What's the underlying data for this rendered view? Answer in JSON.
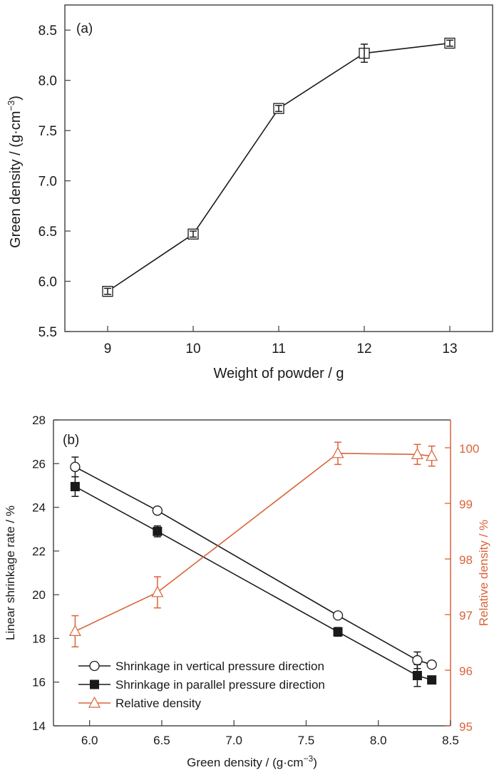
{
  "chart_data": [
    {
      "type": "line",
      "panel_label": "(a)",
      "xlabel": "Weight of powder / g",
      "ylabel_main": "Green density / (g·cm",
      "ylabel_sup": "−3",
      "ylabel_close": ")",
      "xlim": [
        8.5,
        13.5
      ],
      "ylim": [
        5.5,
        8.75
      ],
      "xticks": [
        "9",
        "10",
        "11",
        "12",
        "13"
      ],
      "xtick_values": [
        9,
        10,
        11,
        12,
        13
      ],
      "yticks": [
        "5.5",
        "6.0",
        "6.5",
        "7.0",
        "7.5",
        "8.0",
        "8.5"
      ],
      "ytick_values": [
        5.5,
        6.0,
        6.5,
        7.0,
        7.5,
        8.0,
        8.5
      ],
      "grid": false,
      "series": [
        {
          "name": "Green density",
          "marker": "open-square",
          "color": "#1a1a1a",
          "x": [
            9,
            10,
            11,
            12,
            13
          ],
          "y": [
            5.9,
            6.47,
            7.72,
            8.27,
            8.37
          ],
          "yerr": [
            0.03,
            0.03,
            0.03,
            0.09,
            0.03
          ]
        }
      ]
    },
    {
      "type": "line",
      "panel_label": "(b)",
      "xlabel_main": "Green density / (g·cm",
      "xlabel_sup": "−3",
      "xlabel_close": ")",
      "ylabel": "Linear shrinkage rate / %",
      "ylabel_right": "Relative density / %",
      "xlim": [
        5.75,
        8.5
      ],
      "ylim": [
        14,
        28
      ],
      "ylim_right": [
        95,
        100.5
      ],
      "xticks": [
        "6.0",
        "6.5",
        "7.0",
        "7.5",
        "8.0",
        "8.5"
      ],
      "xtick_values": [
        6.0,
        6.5,
        7.0,
        7.5,
        8.0,
        8.5
      ],
      "yticks": [
        "14",
        "16",
        "18",
        "20",
        "22",
        "24",
        "26",
        "28"
      ],
      "ytick_values": [
        14,
        16,
        18,
        20,
        22,
        24,
        26,
        28
      ],
      "yticks_right": [
        "95",
        "96",
        "97",
        "98",
        "99",
        "100"
      ],
      "ytick_right_values": [
        95,
        96,
        97,
        98,
        99,
        100
      ],
      "grid": false,
      "legend_position": "bottom-left",
      "right_axis_color": "#d9643a",
      "series": [
        {
          "name": "Shrinkage in vertical pressure direction",
          "marker": "open-circle",
          "axis": "left",
          "color": "#1a1a1a",
          "x": [
            5.9,
            6.47,
            7.72,
            8.27,
            8.37
          ],
          "y": [
            25.85,
            23.85,
            19.05,
            17.0,
            16.8
          ],
          "yerr": [
            0.45,
            0.1,
            0.1,
            0.38,
            0.1
          ]
        },
        {
          "name": "Shrinkage in parallel pressure direction",
          "marker": "filled-square",
          "axis": "left",
          "color": "#1a1a1a",
          "x": [
            5.9,
            6.47,
            7.72,
            8.27,
            8.37
          ],
          "y": [
            24.95,
            22.9,
            18.3,
            16.3,
            16.1
          ],
          "yerr": [
            0.45,
            0.25,
            0.2,
            0.5,
            0.1
          ]
        },
        {
          "name": "Relative density",
          "marker": "open-triangle",
          "axis": "right",
          "color": "#d9643a",
          "x": [
            5.9,
            6.47,
            7.72,
            8.27,
            8.37
          ],
          "y": [
            96.7,
            97.4,
            99.9,
            99.88,
            99.85
          ],
          "yerr": [
            0.28,
            0.28,
            0.2,
            0.18,
            0.18
          ]
        }
      ]
    }
  ]
}
